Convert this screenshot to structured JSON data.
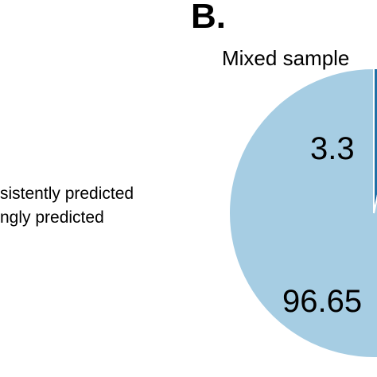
{
  "panel_label": "B.",
  "legend": {
    "line1": "sistently predicted",
    "line2": "ngly predicted"
  },
  "chart_data": {
    "type": "pie",
    "title": "Mixed sample",
    "slices": [
      {
        "value": 3.35,
        "label": "3.3",
        "color": "#1f6fa6"
      },
      {
        "value": 96.65,
        "label": "96.65",
        "color": "#a6cde3"
      }
    ]
  }
}
